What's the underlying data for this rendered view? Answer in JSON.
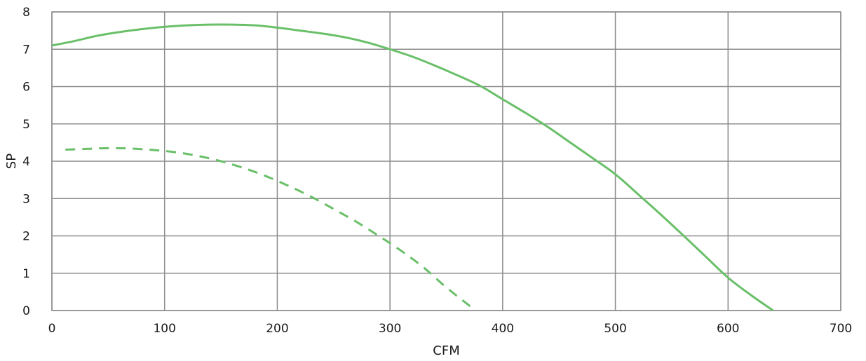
{
  "chart_data": {
    "type": "line",
    "xlabel": "CFM",
    "ylabel": "SP",
    "xlim": [
      0,
      700
    ],
    "ylim": [
      0,
      8
    ],
    "xticks": [
      "0",
      "100",
      "200",
      "300",
      "400",
      "500",
      "600",
      "700"
    ],
    "yticks": [
      "0",
      "1",
      "2",
      "3",
      "4",
      "5",
      "6",
      "7",
      "8"
    ],
    "grid": true,
    "legend": "none",
    "series": [
      {
        "style": "solid",
        "color": "#6abf69",
        "x": [
          0,
          20,
          40,
          60,
          80,
          100,
          120,
          140,
          160,
          180,
          200,
          220,
          240,
          260,
          280,
          300,
          320,
          340,
          360,
          380,
          400,
          420,
          440,
          460,
          480,
          500,
          520,
          540,
          560,
          580,
          600,
          620,
          640
        ],
        "y": [
          7.1,
          7.22,
          7.36,
          7.46,
          7.54,
          7.6,
          7.64,
          7.66,
          7.66,
          7.64,
          7.58,
          7.5,
          7.42,
          7.32,
          7.18,
          7.0,
          6.8,
          6.56,
          6.3,
          6.02,
          5.66,
          5.3,
          4.92,
          4.5,
          4.08,
          3.65,
          3.12,
          2.58,
          2.02,
          1.45,
          0.88,
          0.42,
          0.0
        ]
      },
      {
        "style": "dashed",
        "color": "#6abf69",
        "x": [
          12,
          30,
          50,
          70,
          90,
          110,
          130,
          150,
          170,
          190,
          210,
          230,
          250,
          270,
          290,
          310,
          330,
          350,
          376
        ],
        "y": [
          4.31,
          4.33,
          4.35,
          4.34,
          4.3,
          4.24,
          4.14,
          4.0,
          3.82,
          3.6,
          3.34,
          3.05,
          2.72,
          2.38,
          2.0,
          1.6,
          1.15,
          0.62,
          0.0
        ]
      }
    ]
  }
}
